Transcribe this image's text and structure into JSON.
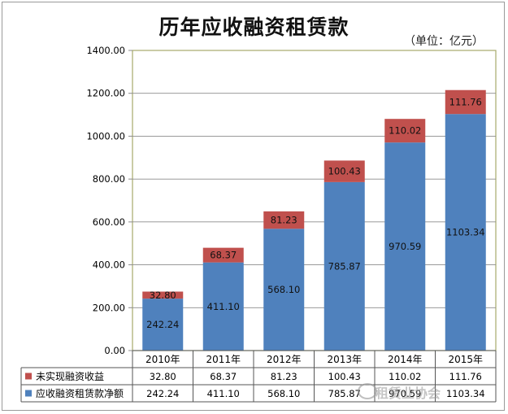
{
  "chart_data": {
    "type": "stacked-bar",
    "title": "历年应收融资租赁款",
    "unit": "（单位：亿元）",
    "categories": [
      "2010年",
      "2011年",
      "2012年",
      "2013年",
      "2014年",
      "2015年"
    ],
    "series": [
      {
        "name": "应收融资租赁款净额",
        "color": "#4f81bd",
        "values": [
          242.24,
          411.1,
          568.1,
          785.87,
          970.59,
          1103.34
        ],
        "labels": [
          "242.24",
          "411.10",
          "568.10",
          "785.87",
          "970.59",
          "1103.34"
        ]
      },
      {
        "name": "未实现融资收益",
        "color": "#c0504d",
        "values": [
          32.8,
          68.37,
          81.23,
          100.43,
          110.02,
          111.76
        ],
        "labels": [
          "32.80",
          "68.37",
          "81.23",
          "100.43",
          "110.02",
          "111.76"
        ]
      }
    ],
    "yticks": [
      "0.00",
      "200.00",
      "400.00",
      "600.00",
      "800.00",
      "1000.00",
      "1200.00",
      "1400.00"
    ],
    "ylim": [
      0,
      1400
    ],
    "grid": true
  },
  "watermark": "租赁业协会"
}
